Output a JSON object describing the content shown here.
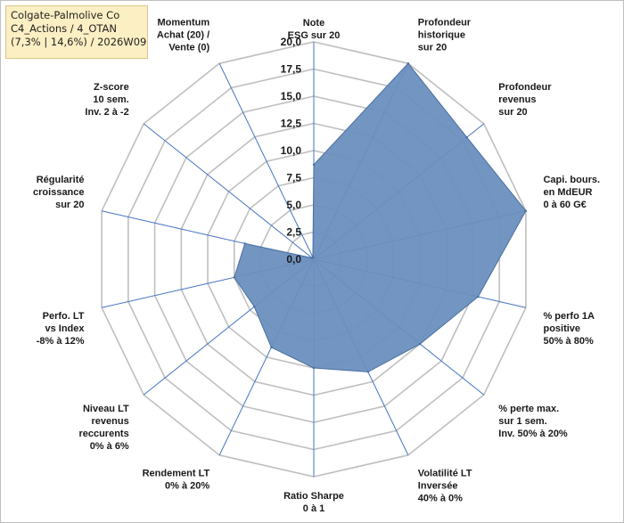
{
  "info_box": {
    "line1": "Colgate-Palmolive Co",
    "line2": "C4_Actions / 4_OTAN",
    "line3": "(7,3% | 14,6%) / 2026W09"
  },
  "chart_data": {
    "type": "radar",
    "title": "",
    "rlim": [
      0,
      20
    ],
    "ticks": [
      "0,0",
      "2,5",
      "5,0",
      "7,5",
      "10,0",
      "12,5",
      "15,0",
      "17,5",
      "20,0"
    ],
    "grid": true,
    "legend": "none",
    "fill_color": "#6a8fbe",
    "stroke_color": "#4a6f9f",
    "grid_color": "#bfbfbf",
    "spoke_color": "#4472c4",
    "categories": [
      {
        "lines": [
          "Note",
          "ESG sur 20"
        ]
      },
      {
        "lines": [
          "Profondeur",
          "historique",
          "sur 20"
        ]
      },
      {
        "lines": [
          "Profondeur",
          "revenus",
          "sur 20"
        ]
      },
      {
        "lines": [
          "Capi. bours.",
          "en MdEUR",
          "0 à 60 G€"
        ]
      },
      {
        "lines": [
          "% perfo 1A",
          "positive",
          "50% à 80%"
        ]
      },
      {
        "lines": [
          "% perte max.",
          "sur 1 sem.",
          "Inv. 50% à 20%"
        ]
      },
      {
        "lines": [
          "Volatilité LT",
          "Inversée",
          "40% à 0%"
        ]
      },
      {
        "lines": [
          "Ratio Sharpe",
          "0 à 1"
        ]
      },
      {
        "lines": [
          "Rendement LT",
          "0% à 20%"
        ]
      },
      {
        "lines": [
          "Niveau LT",
          "revenus",
          "reccurents",
          "0% à 6%"
        ]
      },
      {
        "lines": [
          "Perfo. LT",
          "vs Index",
          "-8% à 12%"
        ]
      },
      {
        "lines": [
          "Régularité",
          "croissance",
          "sur 20"
        ]
      },
      {
        "lines": [
          "Z-score",
          "10 sem.",
          "Inv. 2 à -2"
        ]
      },
      {
        "lines": [
          "Momentum",
          "Achat (20) /",
          "Vente (0)"
        ]
      }
    ],
    "values": [
      8.7,
      20.0,
      18.0,
      20.0,
      15.5,
      12.5,
      11.5,
      10.0,
      9.0,
      7.0,
      7.5,
      6.5,
      0.2,
      0.2
    ]
  }
}
